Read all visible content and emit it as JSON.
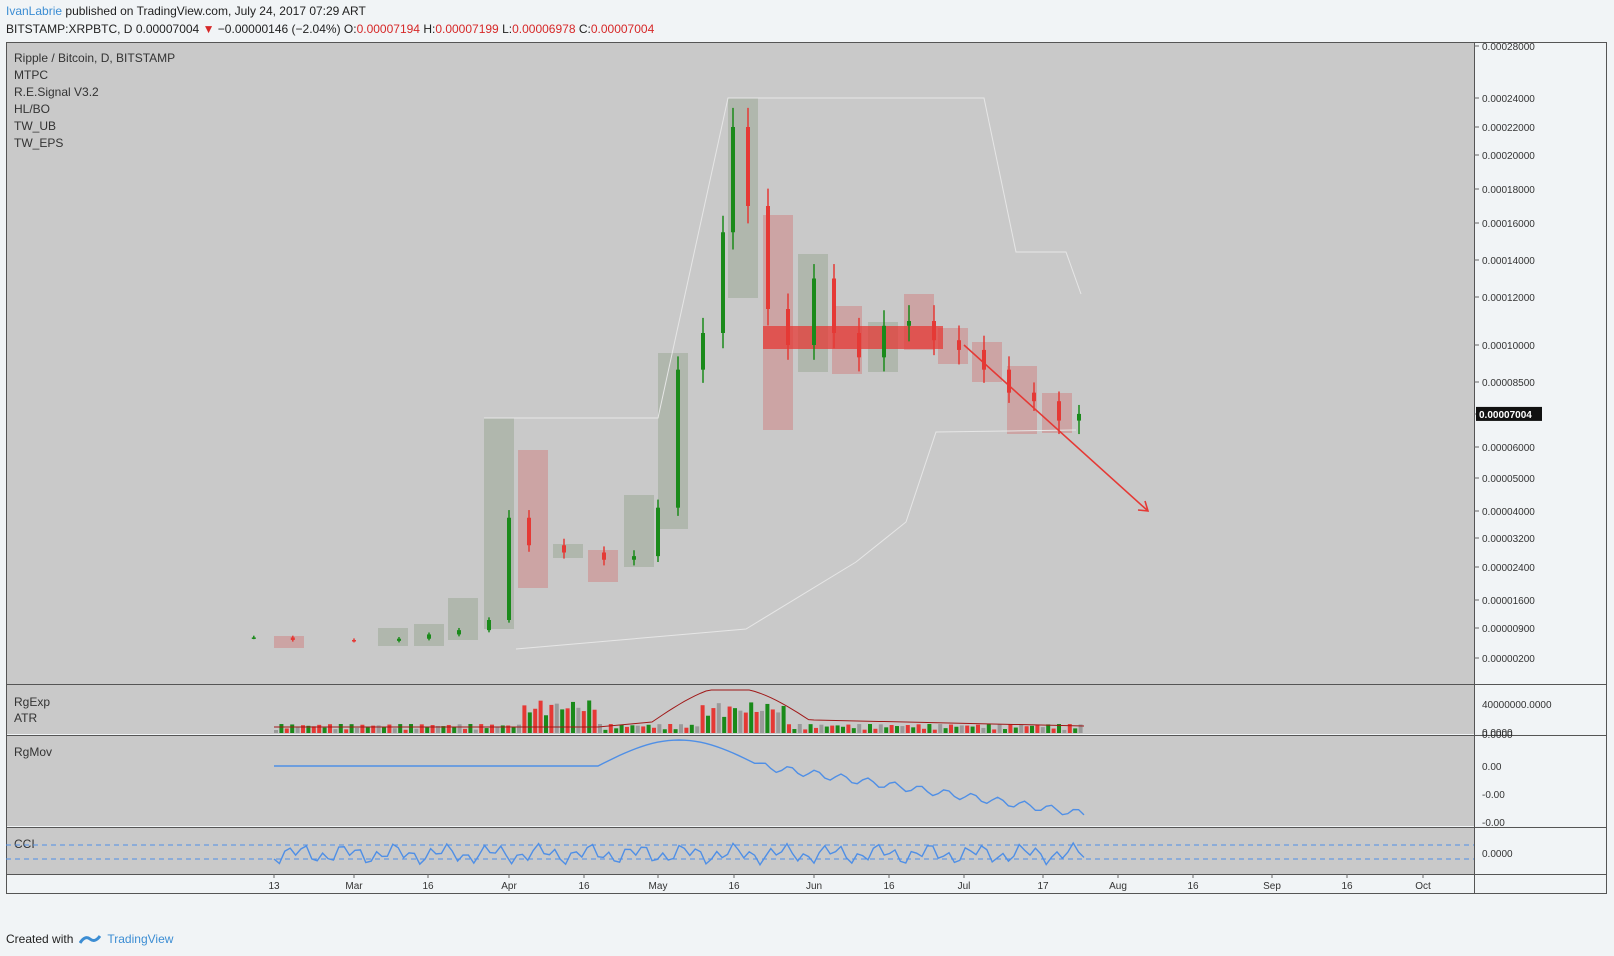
{
  "header": {
    "author": "IvanLabrie",
    "published_text": "published on TradingView.com, July 24, 2017 07:29 ART",
    "symbol": "BITSTAMP:XRPBTC, D",
    "last": "0.00007004",
    "arrow": "▼",
    "change": "−0.00000146 (−2.04%)",
    "o_label": "O:",
    "o_value": "0.00007194",
    "h_label": "H:",
    "h_value": "0.00007199",
    "l_label": "L:",
    "l_value": "0.00006978",
    "c_label": "C:",
    "c_value": "0.00007004"
  },
  "legend": {
    "items": [
      "Ripple / Bitcoin, D, BITSTAMP",
      "MTPC",
      "R.E.Signal V3.2",
      "HL/BO",
      "TW_UB",
      "TW_EPS"
    ]
  },
  "panes": {
    "volume_labels": [
      "RgExp",
      "ATR"
    ],
    "rgmov_label": "RgMov",
    "cci_label": "CCI"
  },
  "footer": {
    "created_with": "Created with",
    "brand": "TradingView"
  },
  "colors": {
    "background": "#c9c9c9",
    "up": "#1a8a1a",
    "down": "#e53935",
    "box_green": "#aab3a6",
    "box_red": "#cc9e9e",
    "line_blue": "#4f8fe6",
    "atr_line": "#a01818",
    "price_label_bg": "#111111"
  },
  "chart_data": {
    "type": "candlestick",
    "symbol": "XRPBTC",
    "exchange": "BITSTAMP",
    "interval": "D",
    "last_price_label": "0.00007004",
    "price_axis_ticks": [
      "0.00028000",
      "0.00024000",
      "0.00022000",
      "0.00020000",
      "0.00018000",
      "0.00016000",
      "0.00014000",
      "0.00012000",
      "0.00010000",
      "0.00008500",
      "0.00007000",
      "0.00006000",
      "0.00005000",
      "0.00004000",
      "0.00003200",
      "0.00002400",
      "0.00001600",
      "0.00000900",
      "0.00000200"
    ],
    "time_axis_ticks": [
      "13",
      "Mar",
      "16",
      "Apr",
      "16",
      "May",
      "16",
      "Jun",
      "16",
      "Jul",
      "17",
      "Aug",
      "16",
      "Sep",
      "16",
      "Oct"
    ],
    "volume_axis_ticks": [
      "40000000.0000",
      "0.0000"
    ],
    "rgmov_axis_ticks": [
      "0.0000",
      "0.00",
      "-0.00",
      "-0.00"
    ],
    "cci_axis_ticks": [
      "0.0000"
    ],
    "series": [
      {
        "name": "close",
        "points": [
          [
            "Feb 10",
            6.8e-06
          ],
          [
            "Feb 20",
            6.2e-06
          ],
          [
            "Mar 1",
            6e-06
          ],
          [
            "Mar 10",
            6.5e-06
          ],
          [
            "Mar 16",
            7.5e-06
          ],
          [
            "Mar 22",
            8.5e-06
          ],
          [
            "Mar 28",
            1.1e-05
          ],
          [
            "Apr 1",
            3.8e-05
          ],
          [
            "Apr 5",
            3e-05
          ],
          [
            "Apr 12",
            2.8e-05
          ],
          [
            "Apr 20",
            2.6e-05
          ],
          [
            "Apr 26",
            2.7e-05
          ],
          [
            "May 1",
            4.1e-05
          ],
          [
            "May 5",
            9e-05
          ],
          [
            "May 10",
            0.000105
          ],
          [
            "May 14",
            0.000155
          ],
          [
            "May 16",
            0.00022
          ],
          [
            "May 19",
            0.00017
          ],
          [
            "May 23",
            0.000115
          ],
          [
            "May 27",
            0.0001
          ],
          [
            "Jun 1",
            0.00013
          ],
          [
            "Jun 5",
            0.000105
          ],
          [
            "Jun 10",
            9.5e-05
          ],
          [
            "Jun 15",
            0.000108
          ],
          [
            "Jun 20",
            0.00011
          ],
          [
            "Jun 25",
            0.000102
          ],
          [
            "Jun 30",
            9.8e-05
          ],
          [
            "Jul 5",
            9e-05
          ],
          [
            "Jul 10",
            8e-05
          ],
          [
            "Jul 15",
            7.6e-05
          ],
          [
            "Jul 20",
            6.8e-05
          ],
          [
            "Jul 24",
            7.004e-05
          ]
        ]
      }
    ],
    "annotation": {
      "type": "arrow",
      "from": [
        "Jul 1",
        0.0001
      ],
      "to": [
        "Aug 1",
        4e-05
      ],
      "color": "#e53935"
    }
  }
}
